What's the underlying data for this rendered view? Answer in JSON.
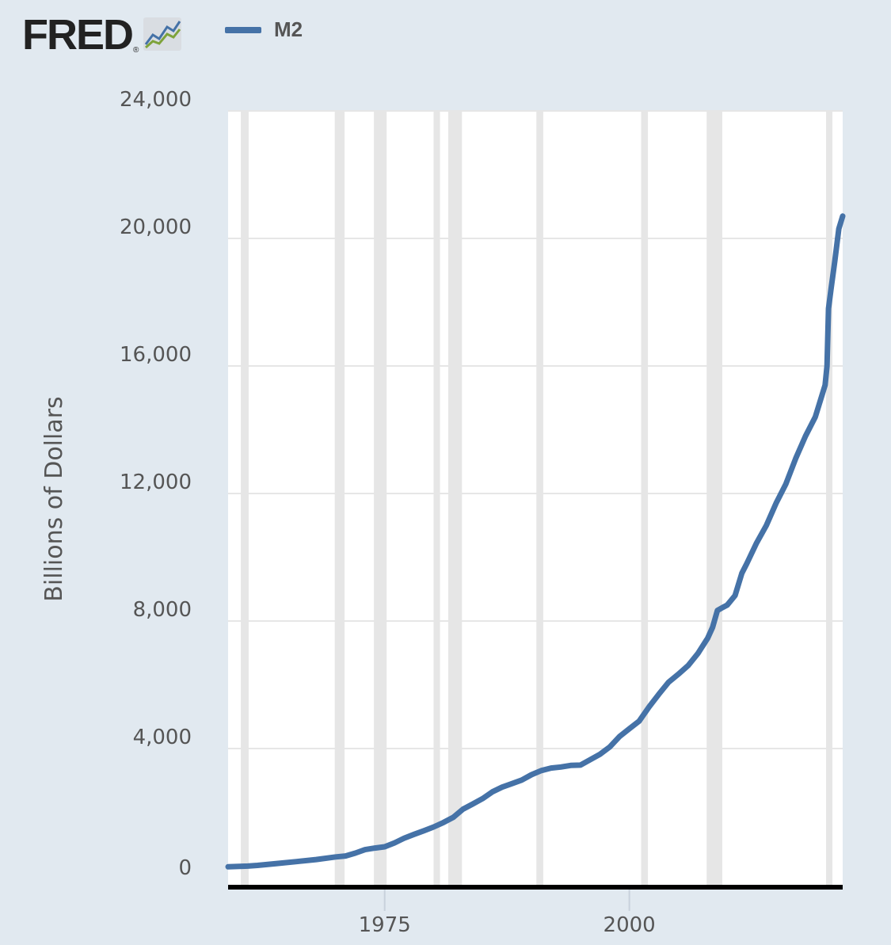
{
  "brand": {
    "name": "FRED",
    "registered": "®"
  },
  "legend": {
    "series_name": "M2",
    "color": "#4572a7"
  },
  "colors": {
    "background": "#e1e9f0",
    "plot_background": "#ffffff",
    "recession": "#e6e6e6",
    "gridline": "#e6e6e6",
    "axis": "#000000"
  },
  "chart_data": {
    "type": "line",
    "title": "",
    "xlabel": "",
    "ylabel": "Billions of Dollars",
    "xlim": [
      1959,
      2021.8
    ],
    "ylim": [
      0,
      24000
    ],
    "y_ticks": [
      0,
      4000,
      8000,
      12000,
      16000,
      20000,
      24000
    ],
    "y_tick_labels": [
      "0",
      "4,000",
      "8,000",
      "12,000",
      "16,000",
      "20,000",
      "24,000"
    ],
    "x_ticks": [
      1975,
      2000
    ],
    "x_tick_labels": [
      "1975",
      "2000"
    ],
    "grid": true,
    "legend_position": "top-left",
    "recessions": [
      [
        1960.3,
        1961.1
      ],
      [
        1969.9,
        1970.9
      ],
      [
        1973.9,
        1975.2
      ],
      [
        1980.0,
        1980.5
      ],
      [
        1981.5,
        1982.9
      ],
      [
        1990.5,
        1991.2
      ],
      [
        2001.2,
        2001.9
      ],
      [
        2007.9,
        2009.5
      ],
      [
        2020.1,
        2020.4
      ]
    ],
    "series": [
      {
        "name": "M2",
        "points": [
          [
            1959.0,
            290
          ],
          [
            1961.0,
            312
          ],
          [
            1962.0,
            335
          ],
          [
            1964.0,
            395
          ],
          [
            1966.0,
            455
          ],
          [
            1968.0,
            520
          ],
          [
            1970.0,
            600
          ],
          [
            1971.0,
            630
          ],
          [
            1972.0,
            720
          ],
          [
            1973.0,
            830
          ],
          [
            1974.0,
            880
          ],
          [
            1975.0,
            920
          ],
          [
            1976.0,
            1040
          ],
          [
            1977.0,
            1190
          ],
          [
            1978.0,
            1310
          ],
          [
            1979.0,
            1420
          ],
          [
            1980.0,
            1540
          ],
          [
            1981.0,
            1680
          ],
          [
            1982.0,
            1840
          ],
          [
            1983.0,
            2100
          ],
          [
            1984.0,
            2260
          ],
          [
            1985.0,
            2430
          ],
          [
            1986.0,
            2640
          ],
          [
            1987.0,
            2790
          ],
          [
            1988.0,
            2900
          ],
          [
            1989.0,
            3010
          ],
          [
            1990.0,
            3180
          ],
          [
            1991.0,
            3310
          ],
          [
            1992.0,
            3390
          ],
          [
            1993.0,
            3420
          ],
          [
            1994.0,
            3470
          ],
          [
            1995.0,
            3480
          ],
          [
            1996.0,
            3650
          ],
          [
            1997.0,
            3820
          ],
          [
            1998.0,
            4050
          ],
          [
            1999.0,
            4380
          ],
          [
            2000.0,
            4620
          ],
          [
            2001.0,
            4860
          ],
          [
            2002.0,
            5300
          ],
          [
            2003.0,
            5700
          ],
          [
            2004.0,
            6080
          ],
          [
            2005.0,
            6330
          ],
          [
            2006.0,
            6600
          ],
          [
            2007.0,
            6980
          ],
          [
            2008.0,
            7460
          ],
          [
            2008.5,
            7800
          ],
          [
            2009.0,
            8330
          ],
          [
            2009.5,
            8420
          ],
          [
            2010.0,
            8500
          ],
          [
            2010.8,
            8800
          ],
          [
            2011.5,
            9500
          ],
          [
            2012.0,
            9800
          ],
          [
            2013.0,
            10450
          ],
          [
            2014.0,
            11000
          ],
          [
            2015.0,
            11700
          ],
          [
            2016.0,
            12300
          ],
          [
            2017.0,
            13100
          ],
          [
            2018.0,
            13800
          ],
          [
            2019.0,
            14400
          ],
          [
            2019.5,
            14900
          ],
          [
            2020.0,
            15400
          ],
          [
            2020.2,
            16000
          ],
          [
            2020.35,
            17800
          ],
          [
            2020.6,
            18400
          ],
          [
            2021.0,
            19300
          ],
          [
            2021.4,
            20300
          ],
          [
            2021.8,
            20700
          ]
        ]
      }
    ]
  }
}
